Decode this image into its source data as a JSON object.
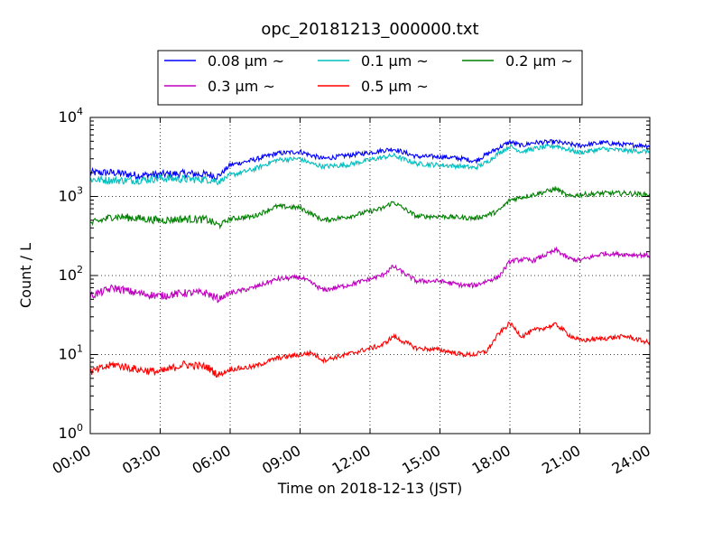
{
  "chart_data": {
    "type": "line",
    "title": "opc_20181213_000000.txt",
    "xlabel": "Time on 2018-12-13 (JST)",
    "ylabel": "Count / L",
    "y_scale": "log",
    "ylim": [
      1,
      10000
    ],
    "x_range_hours": [
      0,
      24
    ],
    "x_ticks": [
      "00:00",
      "03:00",
      "06:00",
      "09:00",
      "12:00",
      "15:00",
      "18:00",
      "21:00",
      "24:00"
    ],
    "y_ticks": [
      {
        "base": "10",
        "exp": "0"
      },
      {
        "base": "10",
        "exp": "1"
      },
      {
        "base": "10",
        "exp": "2"
      },
      {
        "base": "10",
        "exp": "3"
      },
      {
        "base": "10",
        "exp": "4"
      }
    ],
    "grid": true,
    "legend_position": "top",
    "series": [
      {
        "name": "0.08 μm ~",
        "color": "#0000ff",
        "values": [
          [
            0,
            2000
          ],
          [
            1,
            2000
          ],
          [
            2,
            1850
          ],
          [
            3,
            1900
          ],
          [
            4,
            1950
          ],
          [
            5,
            1900
          ],
          [
            5.5,
            1800
          ],
          [
            6,
            2500
          ],
          [
            7,
            2900
          ],
          [
            8,
            3500
          ],
          [
            9,
            3700
          ],
          [
            9.5,
            3300
          ],
          [
            10,
            3000
          ],
          [
            11,
            3300
          ],
          [
            12,
            3600
          ],
          [
            12.5,
            3800
          ],
          [
            13,
            4000
          ],
          [
            14,
            3200
          ],
          [
            15,
            3200
          ],
          [
            16,
            3000
          ],
          [
            16.5,
            2800
          ],
          [
            17,
            3400
          ],
          [
            17.5,
            4100
          ],
          [
            18,
            4900
          ],
          [
            18.5,
            4400
          ],
          [
            19,
            4800
          ],
          [
            20,
            4900
          ],
          [
            20.5,
            4600
          ],
          [
            21,
            4400
          ],
          [
            22,
            4800
          ],
          [
            23,
            4500
          ],
          [
            24,
            4400
          ]
        ]
      },
      {
        "name": "0.1 μm ~",
        "color": "#00bfbf",
        "values": [
          [
            0,
            1650
          ],
          [
            1,
            1600
          ],
          [
            2,
            1600
          ],
          [
            3,
            1700
          ],
          [
            4,
            1650
          ],
          [
            5,
            1650
          ],
          [
            5.5,
            1550
          ],
          [
            6,
            1850
          ],
          [
            7,
            2200
          ],
          [
            8,
            2900
          ],
          [
            9,
            3000
          ],
          [
            9.5,
            2600
          ],
          [
            10,
            2400
          ],
          [
            11,
            2500
          ],
          [
            12,
            2900
          ],
          [
            12.5,
            3100
          ],
          [
            13,
            3300
          ],
          [
            14,
            2600
          ],
          [
            15,
            2500
          ],
          [
            16,
            2400
          ],
          [
            16.5,
            2300
          ],
          [
            17,
            2700
          ],
          [
            17.5,
            3500
          ],
          [
            18,
            4300
          ],
          [
            18.5,
            3700
          ],
          [
            19,
            4000
          ],
          [
            20,
            4400
          ],
          [
            20.5,
            3900
          ],
          [
            21,
            3600
          ],
          [
            22,
            4000
          ],
          [
            23,
            3800
          ],
          [
            24,
            3700
          ]
        ]
      },
      {
        "name": "0.2 μm ~",
        "color": "#008000",
        "values": [
          [
            0,
            450
          ],
          [
            1,
            560
          ],
          [
            2,
            530
          ],
          [
            3,
            500
          ],
          [
            4,
            520
          ],
          [
            5,
            510
          ],
          [
            5.5,
            430
          ],
          [
            6,
            520
          ],
          [
            7,
            560
          ],
          [
            8,
            750
          ],
          [
            9,
            720
          ],
          [
            9.5,
            600
          ],
          [
            10,
            500
          ],
          [
            11,
            550
          ],
          [
            12,
            650
          ],
          [
            12.5,
            700
          ],
          [
            13,
            850
          ],
          [
            14,
            560
          ],
          [
            15,
            560
          ],
          [
            16,
            540
          ],
          [
            16.5,
            530
          ],
          [
            17,
            580
          ],
          [
            17.5,
            650
          ],
          [
            18,
            900
          ],
          [
            18.5,
            980
          ],
          [
            19,
            1050
          ],
          [
            20,
            1250
          ],
          [
            20.5,
            1000
          ],
          [
            21,
            1050
          ],
          [
            22,
            1100
          ],
          [
            23,
            1100
          ],
          [
            24,
            1050
          ]
        ]
      },
      {
        "name": "0.3 μm ~",
        "color": "#bf00bf",
        "values": [
          [
            0,
            55
          ],
          [
            1,
            70
          ],
          [
            2,
            60
          ],
          [
            3,
            55
          ],
          [
            4,
            60
          ],
          [
            5,
            60
          ],
          [
            5.5,
            50
          ],
          [
            6,
            60
          ],
          [
            7,
            70
          ],
          [
            8,
            90
          ],
          [
            9,
            95
          ],
          [
            9.5,
            80
          ],
          [
            10,
            65
          ],
          [
            11,
            75
          ],
          [
            12,
            90
          ],
          [
            12.5,
            100
          ],
          [
            13,
            130
          ],
          [
            14,
            85
          ],
          [
            15,
            85
          ],
          [
            16,
            75
          ],
          [
            16.5,
            75
          ],
          [
            17,
            85
          ],
          [
            17.5,
            95
          ],
          [
            18,
            150
          ],
          [
            18.5,
            160
          ],
          [
            19,
            155
          ],
          [
            20,
            210
          ],
          [
            20.5,
            165
          ],
          [
            21,
            155
          ],
          [
            22,
            190
          ],
          [
            23,
            185
          ],
          [
            24,
            180
          ]
        ]
      },
      {
        "name": "0.5 μm ~",
        "color": "#ff0000",
        "values": [
          [
            0,
            6
          ],
          [
            1,
            7.5
          ],
          [
            2,
            6.5
          ],
          [
            3,
            6
          ],
          [
            4,
            7.5
          ],
          [
            5,
            7
          ],
          [
            5.5,
            5.5
          ],
          [
            6,
            6.5
          ],
          [
            7,
            7
          ],
          [
            8,
            9
          ],
          [
            9,
            10
          ],
          [
            9.5,
            10.5
          ],
          [
            10,
            8.5
          ],
          [
            11,
            10
          ],
          [
            12,
            12
          ],
          [
            12.5,
            13
          ],
          [
            13,
            17
          ],
          [
            14,
            12
          ],
          [
            15,
            11.5
          ],
          [
            16,
            10
          ],
          [
            16.5,
            10
          ],
          [
            17,
            11
          ],
          [
            17.5,
            18
          ],
          [
            18,
            25
          ],
          [
            18.5,
            17
          ],
          [
            19,
            20
          ],
          [
            20,
            24
          ],
          [
            20.5,
            18
          ],
          [
            21,
            15
          ],
          [
            22,
            16
          ],
          [
            23,
            17
          ],
          [
            24,
            14
          ]
        ]
      }
    ]
  }
}
